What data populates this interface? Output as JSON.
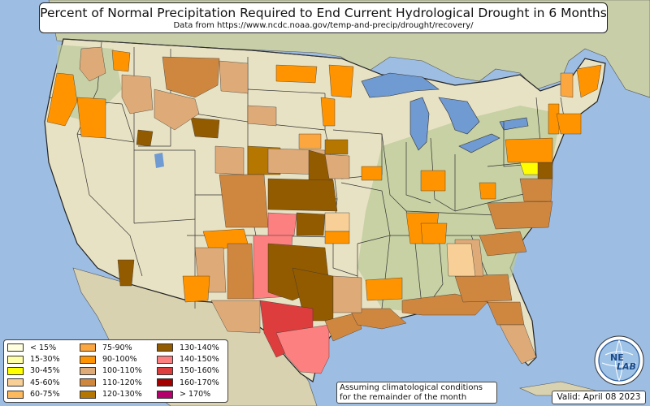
{
  "header": {
    "title": "Percent of Normal Precipitation Required to End Current Hydrological Drought in 6 Months",
    "subtitle": "Data from https://www.ncdc.noaa.gov/temp-and-precip/drought/recovery/"
  },
  "legend": [
    {
      "label": "< 15%",
      "color": "#ffffe0"
    },
    {
      "label": "15-30%",
      "color": "#ffffa8"
    },
    {
      "label": "30-45%",
      "color": "#ffff00"
    },
    {
      "label": "45-60%",
      "color": "#f8cf96"
    },
    {
      "label": "60-75%",
      "color": "#fcb95e"
    },
    {
      "label": "75-90%",
      "color": "#fca640"
    },
    {
      "label": "90-100%",
      "color": "#ff9400"
    },
    {
      "label": "100-110%",
      "color": "#deab78"
    },
    {
      "label": "110-120%",
      "color": "#cf8740"
    },
    {
      "label": "120-130%",
      "color": "#b57700"
    },
    {
      "label": "130-140%",
      "color": "#935b00"
    },
    {
      "label": "140-150%",
      "color": "#fc8080"
    },
    {
      "label": "150-160%",
      "color": "#dd3d3d"
    },
    {
      "label": "160-170%",
      "color": "#a30000"
    },
    {
      "label": "> 170%",
      "color": "#b4006a"
    }
  ],
  "notes": {
    "assumption": "Assuming climatological conditions for the remainder of the month",
    "valid": "Valid: April 08 2023"
  },
  "logo": {
    "text_top": "NE",
    "text_bottom": "LAB",
    "icon": "nexlab-globe-logo"
  },
  "colors": {
    "ocean": "#9dbde3",
    "land": "#e8e2c4",
    "land_green": "#b9c99a",
    "lake": "#6f9ad2",
    "border": "#222222"
  }
}
